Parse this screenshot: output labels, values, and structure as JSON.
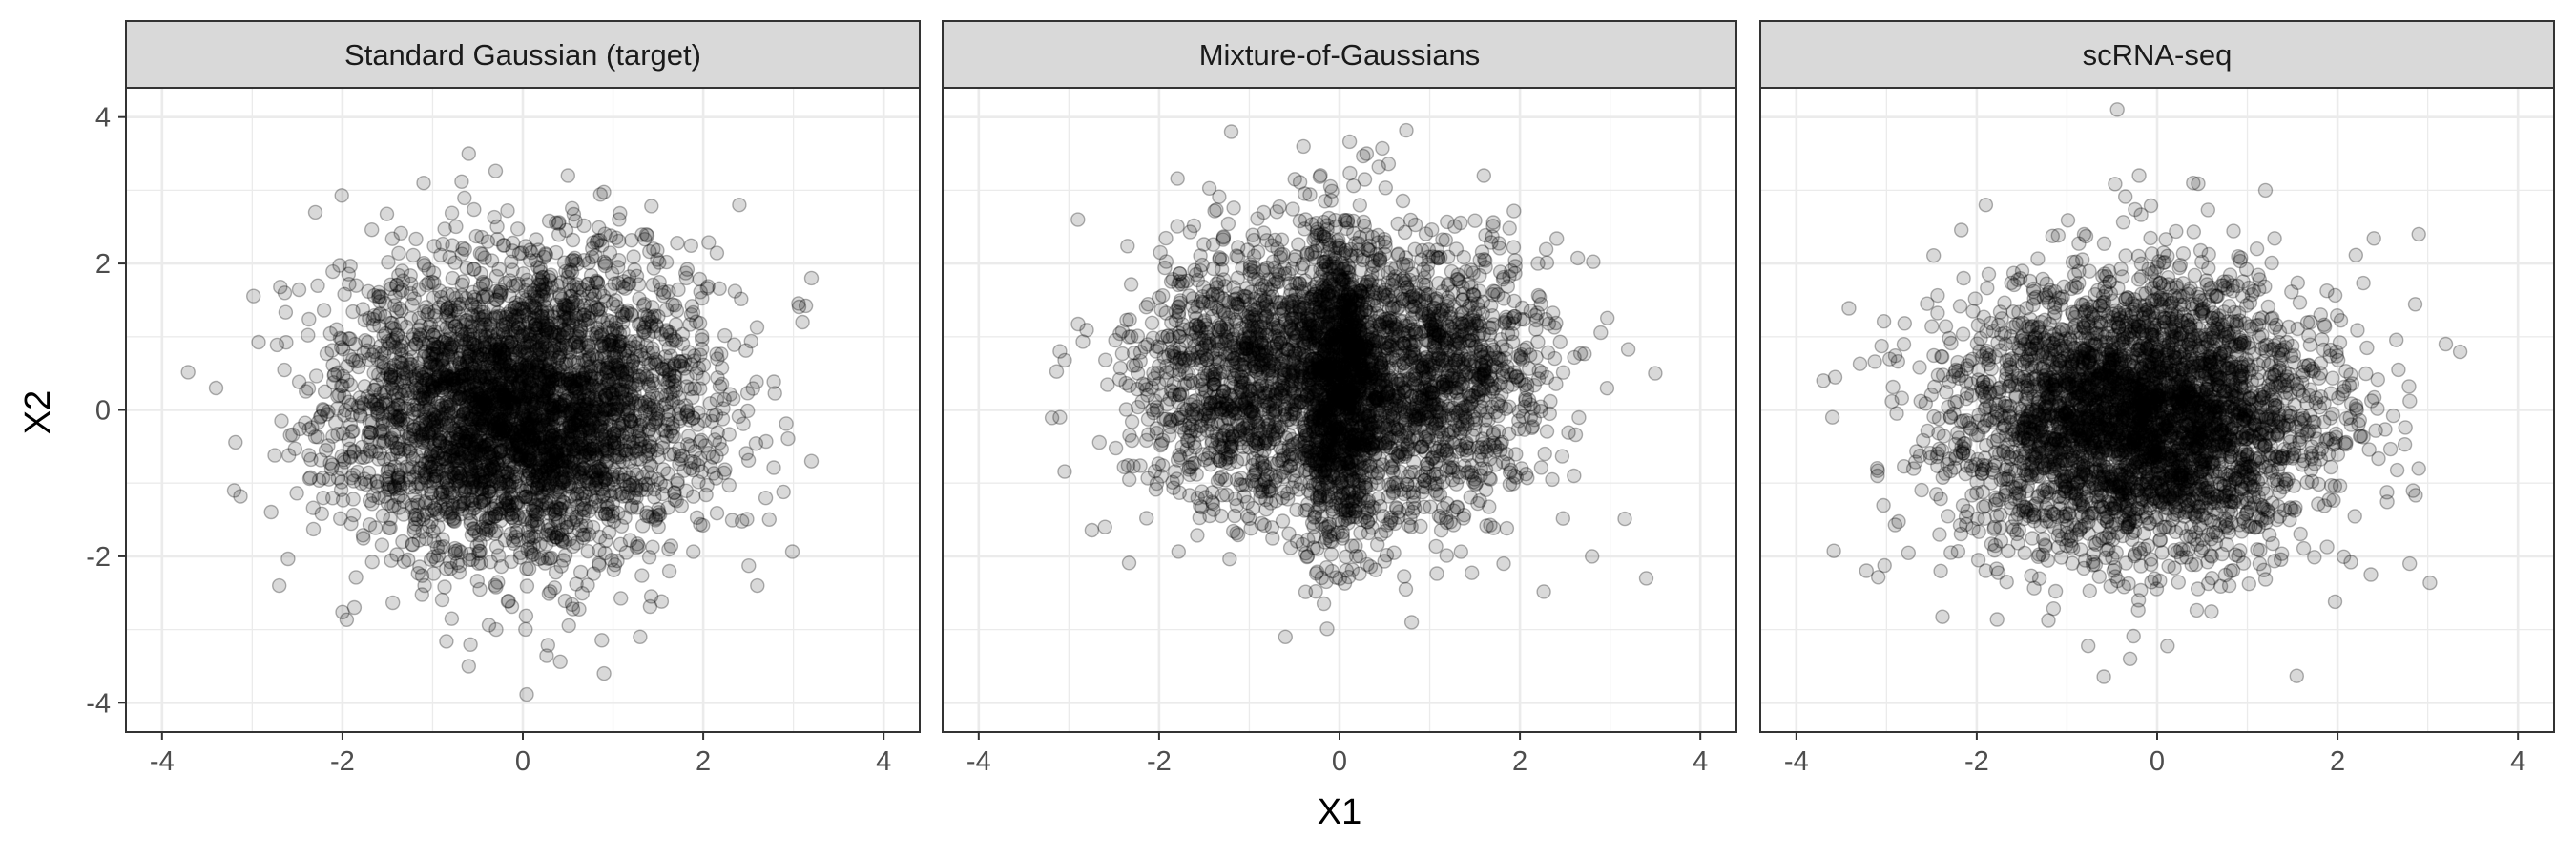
{
  "chart_data": {
    "type": "scatter",
    "layout": "facet-row",
    "xlabel": "X1",
    "ylabel": "X2",
    "xlim": [
      -4.4,
      4.4
    ],
    "ylim": [
      -4.4,
      4.4
    ],
    "x_ticks": [
      -4,
      -2,
      0,
      2,
      4
    ],
    "y_ticks": [
      -4,
      -2,
      0,
      2,
      4
    ],
    "x_tick_labels": [
      "-4",
      "-2",
      "0",
      "2",
      "4"
    ],
    "y_tick_labels": [
      "-4",
      "-2",
      "0",
      "2",
      "4"
    ],
    "grid": true,
    "theme": "black-and-white",
    "point_color": "#000000",
    "point_alpha": 0.15,
    "strip_fill": "#d9d9d9",
    "panel_border": "#333333",
    "grid_color": "#ebebeb",
    "points_per_panel_approx": 5000,
    "panels": [
      {
        "title": "Standard Gaussian (target)",
        "distribution": "Gaussian centered at (0, 0), sd about 1 in both axes",
        "points_sample": [
          [
            -3.4,
            0.3
          ],
          [
            -3.2,
            -1.1
          ],
          [
            3.2,
            1.8
          ],
          [
            3.1,
            1.2
          ],
          [
            3.2,
            -0.7
          ],
          [
            0.9,
            -3.6
          ],
          [
            -0.6,
            -3.5
          ],
          [
            -0.6,
            3.5
          ],
          [
            0.5,
            3.2
          ],
          [
            2.4,
            2.8
          ],
          [
            -2.7,
            -2.4
          ],
          [
            2.6,
            -2.4
          ],
          [
            -2.3,
            2.7
          ],
          [
            1.3,
            -3.1
          ],
          [
            -1.1,
            3.1
          ]
        ]
      },
      {
        "title": "Mixture-of-Gaussians",
        "distribution": "mixture of three elongated clusters near x = -1, 0, 1, y centered near 0.5",
        "points_sample": [
          [
            -3.1,
            0.8
          ],
          [
            -3.1,
            -0.1
          ],
          [
            3.5,
            0.5
          ],
          [
            3.4,
            -2.3
          ],
          [
            -0.6,
            -3.1
          ],
          [
            -1.2,
            3.8
          ],
          [
            -0.4,
            3.6
          ],
          [
            0.8,
            -2.9
          ],
          [
            2.6,
            -0.9
          ],
          [
            2.8,
            -2.0
          ],
          [
            1.6,
            3.2
          ],
          [
            -2.6,
            -1.6
          ],
          [
            -2.9,
            2.6
          ],
          [
            0.3,
            3.5
          ],
          [
            2.2,
            2.0
          ]
        ]
      },
      {
        "title": "scRNA-seq",
        "distribution": "Gaussian-like cloud centered near (-0.2, -0.1)",
        "points_sample": [
          [
            -3.7,
            0.4
          ],
          [
            -3.6,
            -0.1
          ],
          [
            -3.1,
            -0.9
          ],
          [
            3.2,
            0.9
          ],
          [
            2.9,
            2.4
          ],
          [
            -0.3,
            -3.4
          ],
          [
            -0.2,
            3.2
          ],
          [
            1.2,
            3.0
          ],
          [
            2.8,
            -2.1
          ],
          [
            -1.9,
            2.8
          ],
          [
            1.7,
            1.2
          ],
          [
            -2.4,
            -2.2
          ],
          [
            2.9,
            -0.8
          ],
          [
            0.8,
            -2.4
          ],
          [
            0.4,
            3.1
          ]
        ]
      }
    ]
  }
}
